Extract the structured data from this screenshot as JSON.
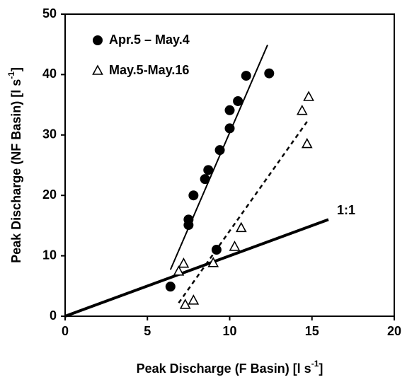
{
  "chart_data": {
    "type": "scatter",
    "xlabel": {
      "text": "Peak Discharge (F Basin) [l s",
      "superscript": "-1",
      "suffix": "]"
    },
    "ylabel": {
      "text": "Peak Discharge (NF Basin) [l s",
      "superscript": "-1",
      "suffix": "]"
    },
    "xlim": [
      0,
      20
    ],
    "xticks": [
      0,
      5,
      10,
      15,
      20
    ],
    "ylim": [
      0,
      50
    ],
    "yticks": [
      0,
      10,
      20,
      30,
      40,
      50
    ],
    "legend": "upper left",
    "series": [
      {
        "name": "Apr.5 – May.4",
        "marker": "circle",
        "color": "#000000",
        "x": [
          6.4,
          7.5,
          7.5,
          7.8,
          8.5,
          8.7,
          9.2,
          9.4,
          10.0,
          10.0,
          10.5,
          11.0,
          12.4
        ],
        "values": [
          4.9,
          16.0,
          15.1,
          20.0,
          22.7,
          24.2,
          11.0,
          27.5,
          31.1,
          34.1,
          35.6,
          39.8,
          40.2
        ]
      },
      {
        "name": "May.5-May.16",
        "marker": "triangle",
        "color": "#000000",
        "x": [
          6.9,
          7.2,
          7.3,
          7.8,
          9.0,
          10.3,
          10.7,
          14.4,
          14.8,
          14.7
        ],
        "values": [
          7.4,
          8.7,
          1.9,
          2.6,
          8.8,
          11.5,
          14.6,
          34.0,
          36.3,
          28.5
        ]
      }
    ],
    "lines": [
      {
        "style": "solid",
        "width": 2,
        "x": [
          6.4,
          12.3
        ],
        "y": [
          7.7,
          44.9
        ]
      },
      {
        "style": "dashed",
        "width": 2.5,
        "x": [
          6.9,
          14.7
        ],
        "y": [
          2.2,
          32.2
        ]
      },
      {
        "style": "solid",
        "width": 4,
        "x": [
          0,
          16
        ],
        "y": [
          0,
          16
        ],
        "label": "1:1"
      }
    ]
  }
}
